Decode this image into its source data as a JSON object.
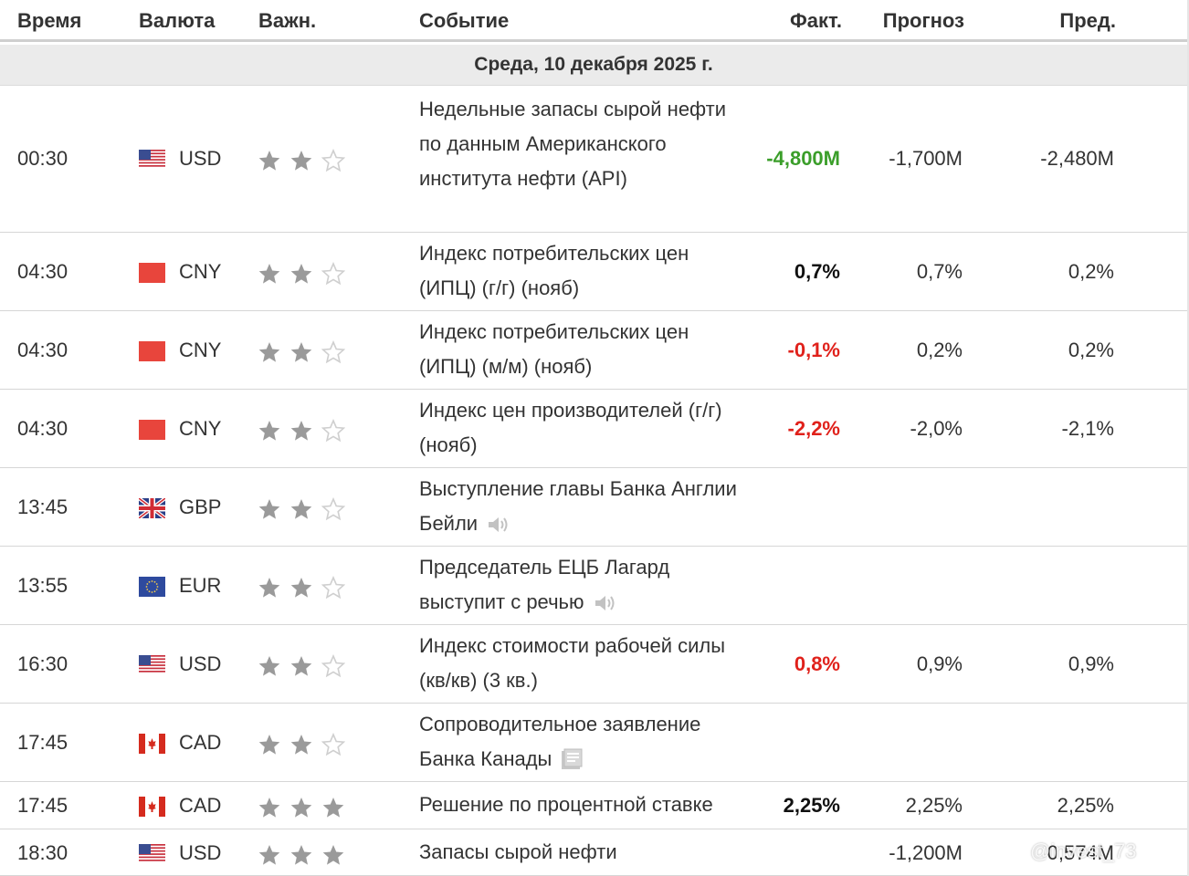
{
  "columns": {
    "time": "Время",
    "currency": "Валюта",
    "importance": "Важн.",
    "event": "Событие",
    "actual": "Факт.",
    "forecast": "Прогноз",
    "previous": "Пред."
  },
  "day_label": "Среда, 10 декабря 2025 г.",
  "colors": {
    "positive": "#3b9e2a",
    "negative": "#e0211b",
    "neutral": "#111111"
  },
  "rows": [
    {
      "time": "00:30",
      "currency": "USD",
      "flag_icon": "us-flag-icon",
      "stars": 2,
      "event": "Недельные запасы сырой нефти по данным Американского института нефти (API)",
      "actual": "-4,800M",
      "actual_color": "green",
      "forecast": "-1,700M",
      "previous": "-2,480M",
      "event_icon": ""
    },
    {
      "time": "04:30",
      "currency": "CNY",
      "flag_icon": "cn-flag-icon",
      "stars": 2,
      "event": "Индекс потребительских цен (ИПЦ) (г/г) (нояб)",
      "actual": "0,7%",
      "actual_color": "black",
      "forecast": "0,7%",
      "previous": "0,2%",
      "event_icon": ""
    },
    {
      "time": "04:30",
      "currency": "CNY",
      "flag_icon": "cn-flag-icon",
      "stars": 2,
      "event": "Индекс потребительских цен (ИПЦ) (м/м) (нояб)",
      "actual": "-0,1%",
      "actual_color": "red",
      "forecast": "0,2%",
      "previous": "0,2%",
      "event_icon": ""
    },
    {
      "time": "04:30",
      "currency": "CNY",
      "flag_icon": "cn-flag-icon",
      "stars": 2,
      "event": "Индекс цен производителей (г/г) (нояб)",
      "actual": "-2,2%",
      "actual_color": "red",
      "forecast": "-2,0%",
      "previous": "-2,1%",
      "event_icon": ""
    },
    {
      "time": "13:45",
      "currency": "GBP",
      "flag_icon": "gb-flag-icon",
      "stars": 2,
      "event": "Выступление главы Банка Англии Бейли",
      "actual": "",
      "actual_color": "black",
      "forecast": "",
      "previous": "",
      "event_icon": "speaker-icon"
    },
    {
      "time": "13:55",
      "currency": "EUR",
      "flag_icon": "eu-flag-icon",
      "stars": 2,
      "event": "Председатель ЕЦБ Лагард выступит с речью",
      "actual": "",
      "actual_color": "black",
      "forecast": "",
      "previous": "",
      "event_icon": "speaker-icon"
    },
    {
      "time": "16:30",
      "currency": "USD",
      "flag_icon": "us-flag-icon",
      "stars": 2,
      "event": "Индекс стоимости рабочей силы (кв/кв) (3 кв.)",
      "actual": "0,8%",
      "actual_color": "red",
      "forecast": "0,9%",
      "previous": "0,9%",
      "event_icon": ""
    },
    {
      "time": "17:45",
      "currency": "CAD",
      "flag_icon": "ca-flag-icon",
      "stars": 2,
      "event": "Сопроводительное заявление Банка Канады",
      "actual": "",
      "actual_color": "black",
      "forecast": "",
      "previous": "",
      "event_icon": "document-icon"
    },
    {
      "time": "17:45",
      "currency": "CAD",
      "flag_icon": "ca-flag-icon",
      "stars": 3,
      "event": "Решение по процентной ставке",
      "actual": "2,25%",
      "actual_color": "black",
      "forecast": "2,25%",
      "previous": "2,25%",
      "event_icon": ""
    },
    {
      "time": "18:30",
      "currency": "USD",
      "flag_icon": "us-flag-icon",
      "stars": 3,
      "event": "Запасы сырой нефти",
      "actual": "",
      "actual_color": "black",
      "forecast": "-1,200M",
      "previous": "0,574M",
      "event_icon": ""
    }
  ],
  "watermark": "@invest_73"
}
